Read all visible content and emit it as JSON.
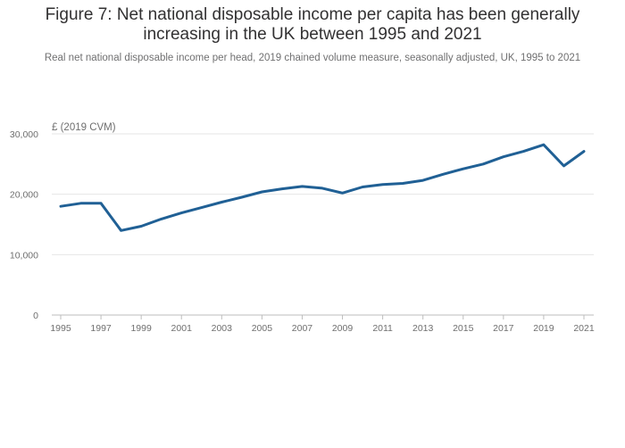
{
  "colors": {
    "line": "#206095",
    "grid": "#e6e6e6",
    "axis": "#bdbdbd",
    "text": "#707071"
  },
  "chart_data": {
    "type": "line",
    "title": "Figure 7: Net national disposable income per capita has been generally increasing in the UK between 1995 and 2021",
    "subtitle": "Real net national disposable income per head, 2019 chained volume measure, seasonally adjusted, UK, 1995 to 2021",
    "ylabel": "£ (2019 CVM)",
    "xlabel": "",
    "ylim": [
      0,
      30000
    ],
    "yticks": [
      0,
      10000,
      20000,
      30000
    ],
    "ytick_labels": [
      "0",
      "10,000",
      "20,000",
      "30,000"
    ],
    "xlim": [
      1995,
      2021
    ],
    "xtick_labels": [
      "1995",
      "1997",
      "1999",
      "2001",
      "2003",
      "2005",
      "2007",
      "2009",
      "2011",
      "2013",
      "2015",
      "2017",
      "2019",
      "2021"
    ],
    "series": [
      {
        "name": "Net national disposable income per head",
        "x": [
          1995,
          1996,
          1997,
          1998,
          1999,
          2000,
          2001,
          2002,
          2003,
          2004,
          2005,
          2006,
          2007,
          2008,
          2009,
          2010,
          2011,
          2012,
          2013,
          2014,
          2015,
          2016,
          2017,
          2018,
          2019,
          2020,
          2021
        ],
        "values": [
          18000,
          18500,
          18500,
          14000,
          14700,
          15900,
          16900,
          17800,
          18700,
          19500,
          20400,
          20900,
          21300,
          21000,
          20200,
          21200,
          21600,
          21800,
          22300,
          23300,
          24200,
          25000,
          26200,
          27100,
          28200,
          24700,
          27100
        ]
      }
    ]
  }
}
